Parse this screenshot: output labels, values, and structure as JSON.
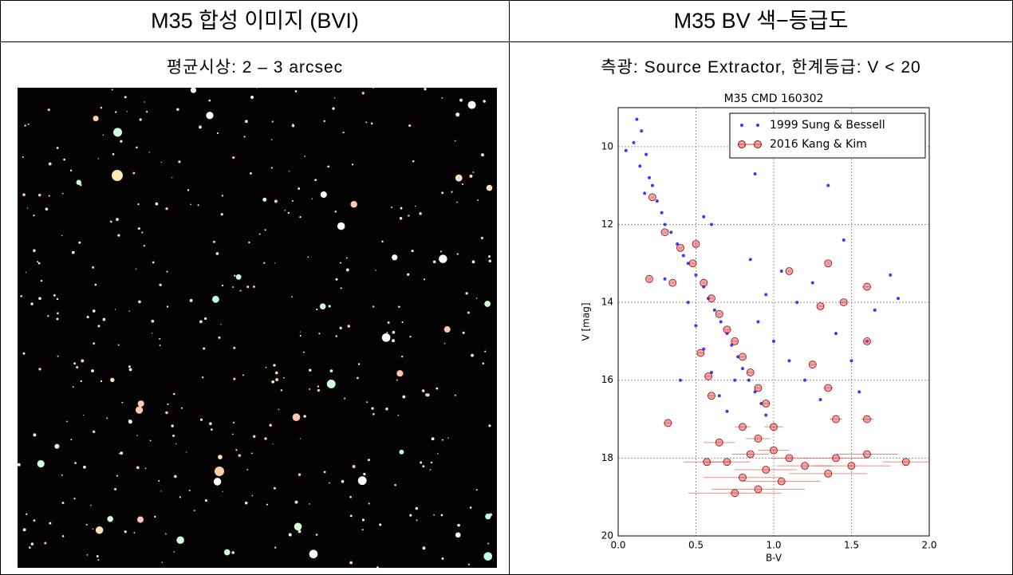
{
  "table": {
    "headers": [
      "M35 합성 이미지 (BVI)",
      "M35 BV 색−등급도"
    ],
    "subtitles": [
      "평균시상: 2 – 3 arcsec",
      "측광: Source Extractor, 한계등급: V < 20"
    ]
  },
  "chart_data": {
    "type": "scatter",
    "title": "M35 CMD 160302",
    "xlabel": "B-V",
    "ylabel": "V [mag]",
    "xlim": [
      0,
      2
    ],
    "ylim": [
      20,
      9
    ],
    "xticks": [
      {
        "value": 0,
        "label": "0.0"
      },
      {
        "value": 0.5,
        "label": "0.5"
      },
      {
        "value": 1,
        "label": "1.0"
      },
      {
        "value": 1.5,
        "label": "1.5"
      },
      {
        "value": 2,
        "label": "2.0"
      }
    ],
    "yticks": [
      10,
      12,
      14,
      16,
      18,
      20
    ],
    "grid": true,
    "legend": "upper right",
    "series": [
      {
        "name": "1999 Sung & Bessell",
        "color": "#3a3aff",
        "x": [
          0.12,
          0.15,
          0.1,
          0.05,
          0.18,
          0.14,
          0.2,
          0.22,
          0.17,
          0.25,
          0.28,
          0.3,
          0.34,
          0.38,
          0.42,
          0.45,
          0.5,
          0.55,
          0.58,
          0.62,
          0.66,
          0.7,
          0.73,
          0.77,
          0.8,
          0.84,
          0.88,
          0.92,
          0.95,
          0.55,
          0.6,
          0.65,
          0.7,
          0.9,
          1.0,
          1.1,
          1.2,
          1.3,
          1.05,
          1.15,
          1.25,
          1.4,
          1.5,
          1.6,
          1.75,
          1.8,
          1.35,
          0.88,
          0.55,
          0.6,
          0.45,
          0.5,
          0.85,
          0.95,
          1.45,
          1.65,
          1.55,
          0.3,
          0.4,
          0.75
        ],
        "y": [
          9.3,
          9.6,
          9.9,
          10.1,
          10.2,
          10.5,
          10.8,
          11.0,
          11.2,
          11.4,
          11.7,
          12.0,
          12.2,
          12.5,
          12.8,
          13.0,
          13.3,
          13.6,
          13.9,
          14.2,
          14.5,
          14.8,
          15.1,
          15.4,
          15.7,
          16.0,
          16.3,
          16.6,
          16.9,
          15.2,
          15.8,
          16.4,
          16.8,
          14.5,
          15.0,
          15.5,
          16.0,
          16.5,
          13.2,
          14.0,
          13.5,
          14.8,
          15.5,
          15.0,
          13.3,
          13.9,
          11.0,
          10.7,
          11.8,
          12.0,
          14.0,
          14.6,
          12.9,
          13.8,
          12.4,
          14.2,
          16.3,
          13.4,
          16.0,
          16.0
        ]
      },
      {
        "name": "2016 Kang & Kim",
        "color": "#e03c3c",
        "x": [
          0.22,
          0.3,
          0.4,
          0.48,
          0.55,
          0.6,
          0.65,
          0.7,
          0.75,
          0.8,
          0.85,
          0.9,
          0.95,
          0.2,
          0.5,
          0.35,
          0.53,
          0.58,
          0.6,
          0.32,
          1.1,
          1.35,
          1.3,
          1.45,
          1.6,
          1.6,
          1.25,
          1.35,
          1.4,
          1.6,
          0.8,
          0.9,
          1.0,
          0.85,
          0.7,
          1.1,
          1.2,
          0.95,
          0.8,
          1.05,
          0.9,
          0.75,
          0.57,
          1.4,
          1.6,
          1.85,
          1.35,
          1.5,
          1.0,
          0.65
        ],
        "y": [
          11.3,
          12.2,
          12.6,
          13.0,
          13.5,
          13.9,
          14.3,
          14.7,
          15.0,
          15.4,
          15.8,
          16.2,
          16.6,
          13.4,
          12.5,
          13.5,
          15.3,
          15.9,
          16.4,
          17.1,
          13.2,
          13.0,
          14.1,
          14.0,
          13.6,
          15.0,
          15.6,
          16.2,
          17.0,
          17.0,
          17.2,
          17.5,
          17.8,
          17.9,
          18.1,
          18.0,
          18.2,
          18.3,
          18.5,
          18.6,
          18.8,
          18.9,
          18.1,
          18.0,
          17.9,
          18.1,
          18.4,
          18.2,
          17.2,
          17.6
        ],
        "xerr": [
          0.01,
          0.01,
          0.01,
          0.01,
          0.01,
          0.01,
          0.01,
          0.02,
          0.02,
          0.02,
          0.02,
          0.02,
          0.03,
          0.01,
          0.01,
          0.01,
          0.02,
          0.02,
          0.02,
          0.03,
          0.01,
          0.01,
          0.02,
          0.02,
          0.02,
          0.02,
          0.02,
          0.03,
          0.04,
          0.04,
          0.05,
          0.08,
          0.1,
          0.12,
          0.15,
          0.12,
          0.18,
          0.2,
          0.25,
          0.25,
          0.3,
          0.3,
          0.15,
          0.2,
          0.2,
          0.15,
          0.25,
          0.25,
          0.06,
          0.1
        ]
      }
    ]
  }
}
